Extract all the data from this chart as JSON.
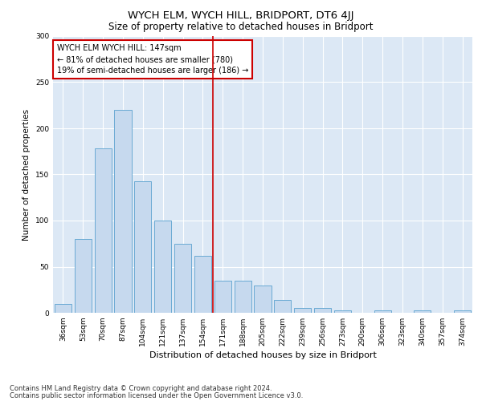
{
  "title": "WYCH ELM, WYCH HILL, BRIDPORT, DT6 4JJ",
  "subtitle": "Size of property relative to detached houses in Bridport",
  "xlabel": "Distribution of detached houses by size in Bridport",
  "ylabel": "Number of detached properties",
  "categories": [
    "36sqm",
    "53sqm",
    "70sqm",
    "87sqm",
    "104sqm",
    "121sqm",
    "137sqm",
    "154sqm",
    "171sqm",
    "188sqm",
    "205sqm",
    "222sqm",
    "239sqm",
    "256sqm",
    "273sqm",
    "290sqm",
    "306sqm",
    "323sqm",
    "340sqm",
    "357sqm",
    "374sqm"
  ],
  "values": [
    10,
    80,
    178,
    220,
    143,
    100,
    75,
    62,
    35,
    35,
    30,
    14,
    5,
    5,
    3,
    0,
    3,
    0,
    3,
    0,
    3
  ],
  "bar_color": "#c6d9ee",
  "bar_edge_color": "#6aaad4",
  "vline_x": 7.5,
  "vline_color": "#cc0000",
  "annotation_text": "WYCH ELM WYCH HILL: 147sqm\n← 81% of detached houses are smaller (780)\n19% of semi-detached houses are larger (186) →",
  "annotation_box_color": "#ffffff",
  "annotation_box_edge": "#cc0000",
  "ylim": [
    0,
    300
  ],
  "yticks": [
    0,
    50,
    100,
    150,
    200,
    250,
    300
  ],
  "bg_color": "#dce8f5",
  "footer1": "Contains HM Land Registry data © Crown copyright and database right 2024.",
  "footer2": "Contains public sector information licensed under the Open Government Licence v3.0.",
  "title_fontsize": 9.5,
  "subtitle_fontsize": 8.5,
  "xlabel_fontsize": 8,
  "ylabel_fontsize": 7.5,
  "tick_fontsize": 6.5,
  "annotation_fontsize": 7,
  "footer_fontsize": 6
}
